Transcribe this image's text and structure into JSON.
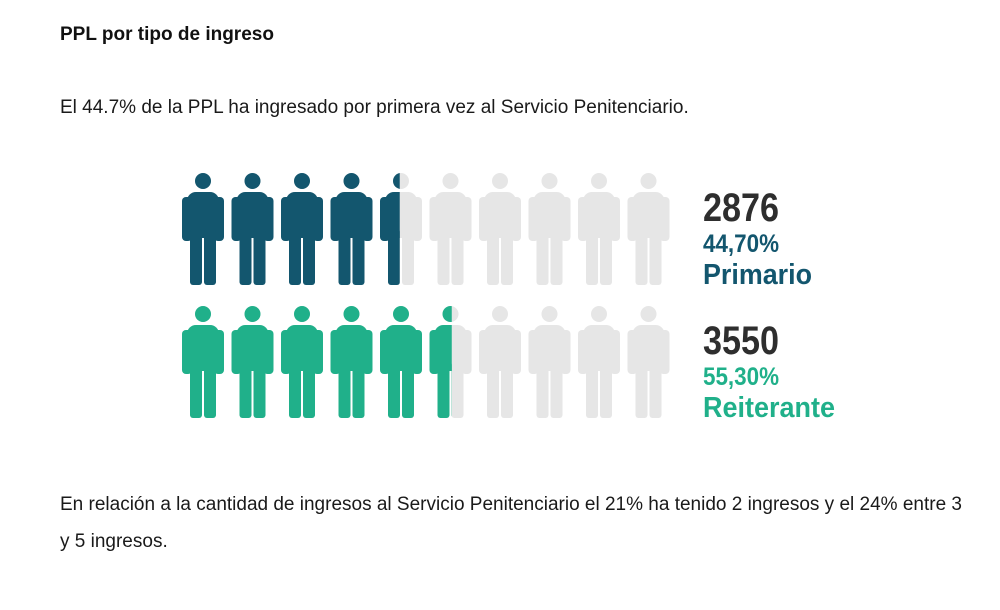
{
  "header": {
    "title": "PPL por tipo de ingreso",
    "intro": "El 44.7% de la PPL ha ingresado por primera vez al Servicio Penitenciario."
  },
  "chart_data": {
    "type": "pictogram",
    "icons_per_row": 10,
    "inactive_color": "#e6e6e6",
    "series": [
      {
        "name": "Primario",
        "count": "2876",
        "percent_label": "44,70%",
        "value": 44.7,
        "color": "#13566e"
      },
      {
        "name": "Reiterante",
        "count": "3550",
        "percent_label": "55,30%",
        "value": 55.3,
        "color": "#20b08a"
      }
    ]
  },
  "footer": {
    "text": "En relación a la cantidad de ingresos al Servicio Penitenciario el 21% ha tenido 2 ingresos y el 24% entre 3 y 5 ingresos."
  }
}
